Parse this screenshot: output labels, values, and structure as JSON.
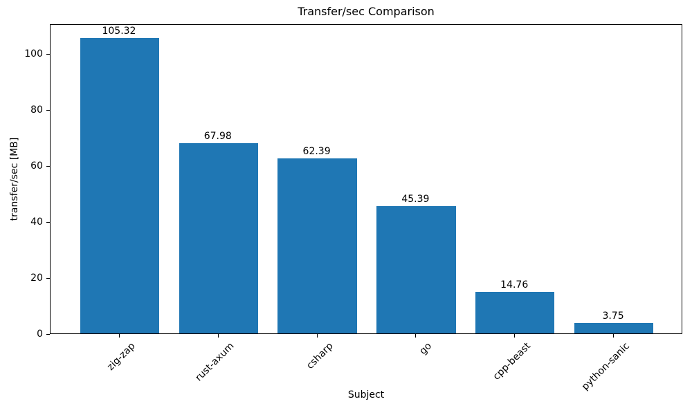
{
  "chart_data": {
    "type": "bar",
    "title": "Transfer/sec Comparison",
    "xlabel": "Subject",
    "ylabel": "transfer/sec [MB]",
    "categories": [
      "zig-zap",
      "rust-axum",
      "csharp",
      "go",
      "cpp-beast",
      "python-sanic"
    ],
    "values": [
      105.32,
      67.98,
      62.39,
      45.39,
      14.76,
      3.75
    ],
    "value_labels": [
      "105.32",
      "67.98",
      "62.39",
      "45.39",
      "14.76",
      "3.75"
    ],
    "yticks": [
      0,
      20,
      40,
      60,
      80,
      100
    ],
    "ylim": [
      0,
      110.6
    ],
    "xtick_rotation": 45,
    "grid": false,
    "legend": "none",
    "bar_color": "#1f77b4",
    "axis_color": "#000000"
  }
}
